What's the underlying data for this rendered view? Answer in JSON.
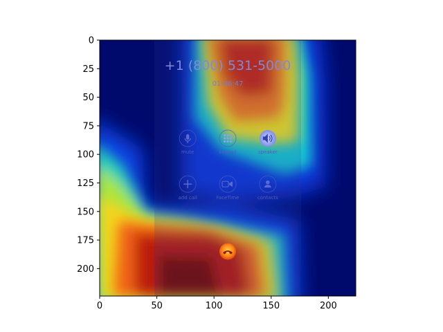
{
  "chart_data": {
    "type": "heatmap",
    "title": "",
    "xlabel": "",
    "ylabel": "",
    "xlim": [
      0,
      224
    ],
    "ylim": [
      224,
      0
    ],
    "x_ticks": [
      0,
      50,
      100,
      150,
      200
    ],
    "y_ticks": [
      0,
      25,
      50,
      75,
      100,
      125,
      150,
      175,
      200
    ],
    "colormap": "jet",
    "colorbar": false,
    "underlying_image": {
      "phone_number": "+1 (800) 531-5000",
      "call_timer": "01:06:47",
      "buttons": [
        {
          "label": "mute",
          "icon": "mic-icon",
          "x": 77,
          "y": 86
        },
        {
          "label": "keypad",
          "icon": "keypad-icon",
          "x": 112,
          "y": 86
        },
        {
          "label": "speaker",
          "icon": "speaker-icon",
          "x": 147,
          "y": 86
        },
        {
          "label": "add call",
          "icon": "plus-icon",
          "x": 77,
          "y": 126
        },
        {
          "label": "FaceTime",
          "icon": "facetime-icon",
          "x": 112,
          "y": 126
        },
        {
          "label": "contacts",
          "icon": "contacts-icon",
          "x": 147,
          "y": 126
        }
      ],
      "end_call": {
        "icon": "end-call-icon",
        "x": 112,
        "y": 185
      }
    }
  },
  "colors": {
    "background_dark": "#000a6e",
    "heat_red": "#c81e0a",
    "heat_yellow": "#f0e61e",
    "heat_cyan": "#1ec8dc",
    "end_call": "#ff7a1a"
  }
}
